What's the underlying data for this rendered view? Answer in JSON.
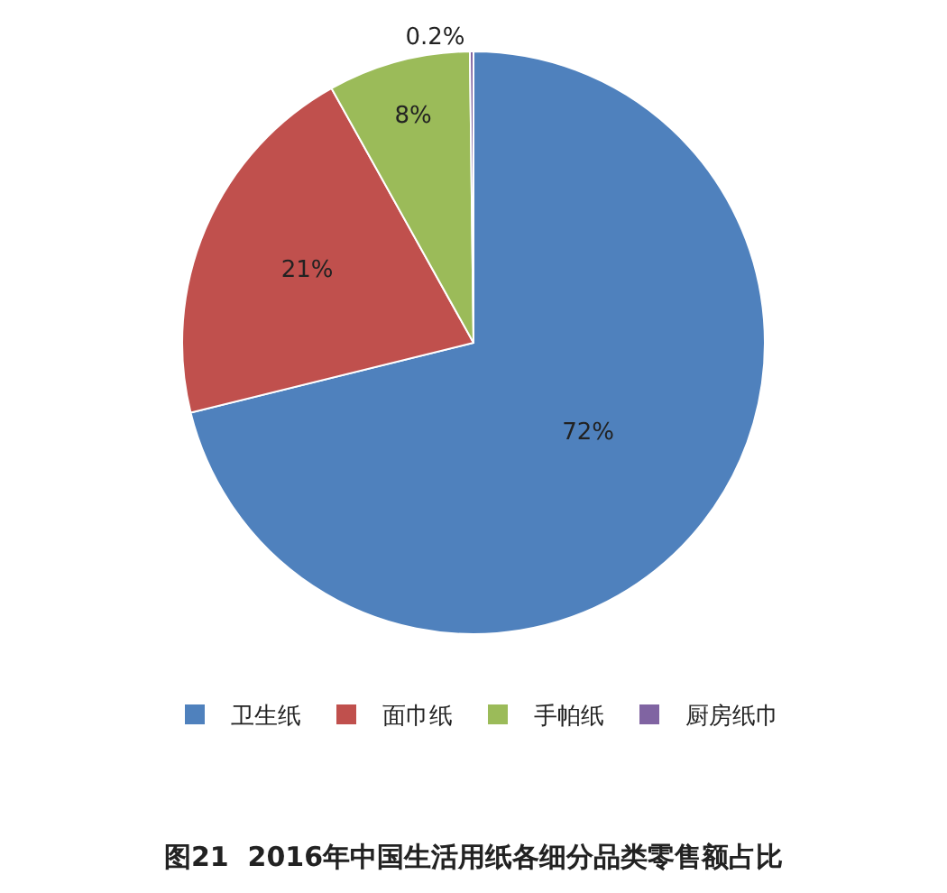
{
  "chart_data": {
    "type": "pie",
    "title": "图21  2016年中国生活用纸各细分品类零售额占比",
    "categories": [
      "卫生纸",
      "面巾纸",
      "手帕纸",
      "厨房纸巾"
    ],
    "values": [
      72,
      21,
      8,
      0.2
    ],
    "value_labels": [
      "72%",
      "21%",
      "8%",
      "0.2%"
    ],
    "colors": [
      "#4f81bd",
      "#c0504d",
      "#9bbb59",
      "#8064a2"
    ],
    "legend": "bottom"
  }
}
